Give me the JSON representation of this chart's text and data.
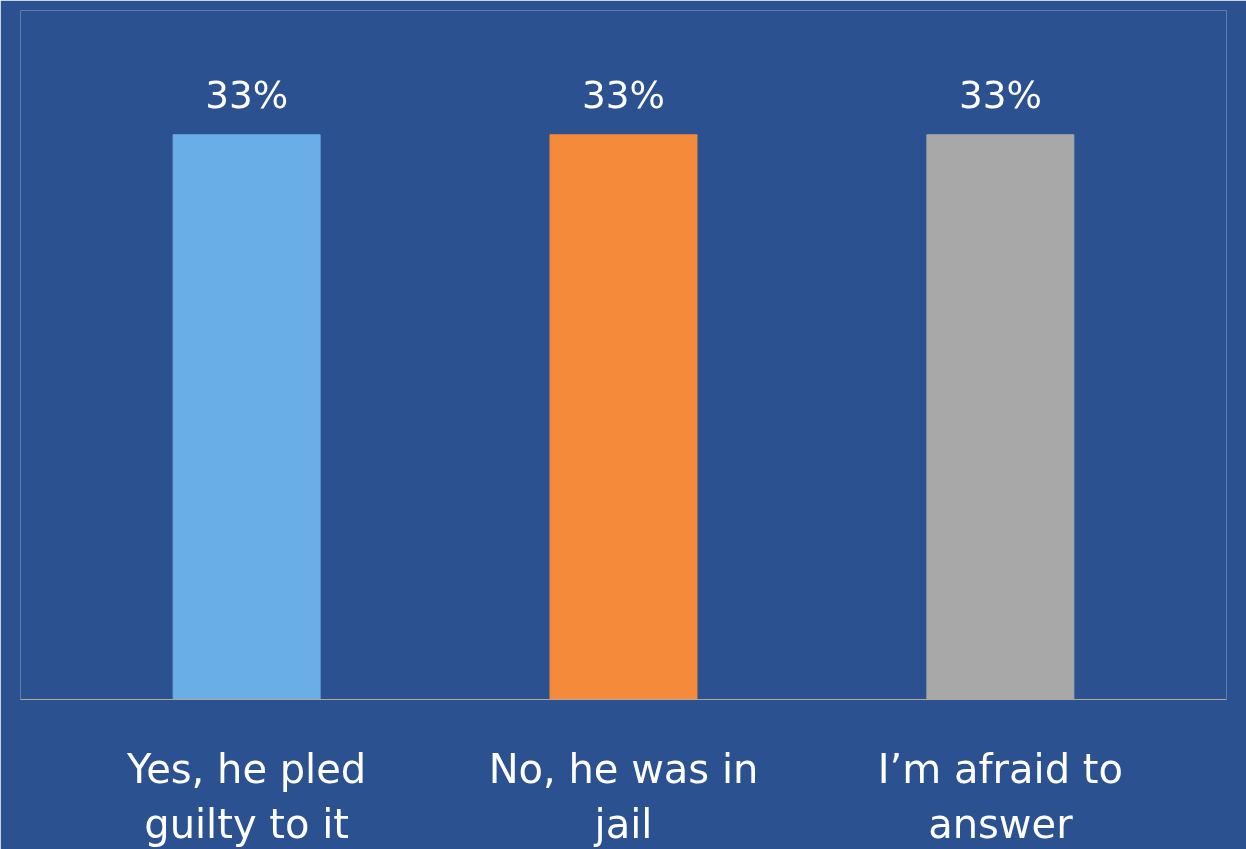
{
  "chart_data": {
    "type": "bar",
    "categories": [
      "Yes, he pled\nguilty to it",
      "No, he was in\njail",
      "I’m afraid to\nanswer"
    ],
    "values": [
      33,
      33,
      33
    ],
    "colors": [
      "#6aaee8",
      "#f58a3a",
      "#a8a8a8"
    ],
    "value_labels": [
      "33%",
      "33%",
      "33%"
    ]
  }
}
